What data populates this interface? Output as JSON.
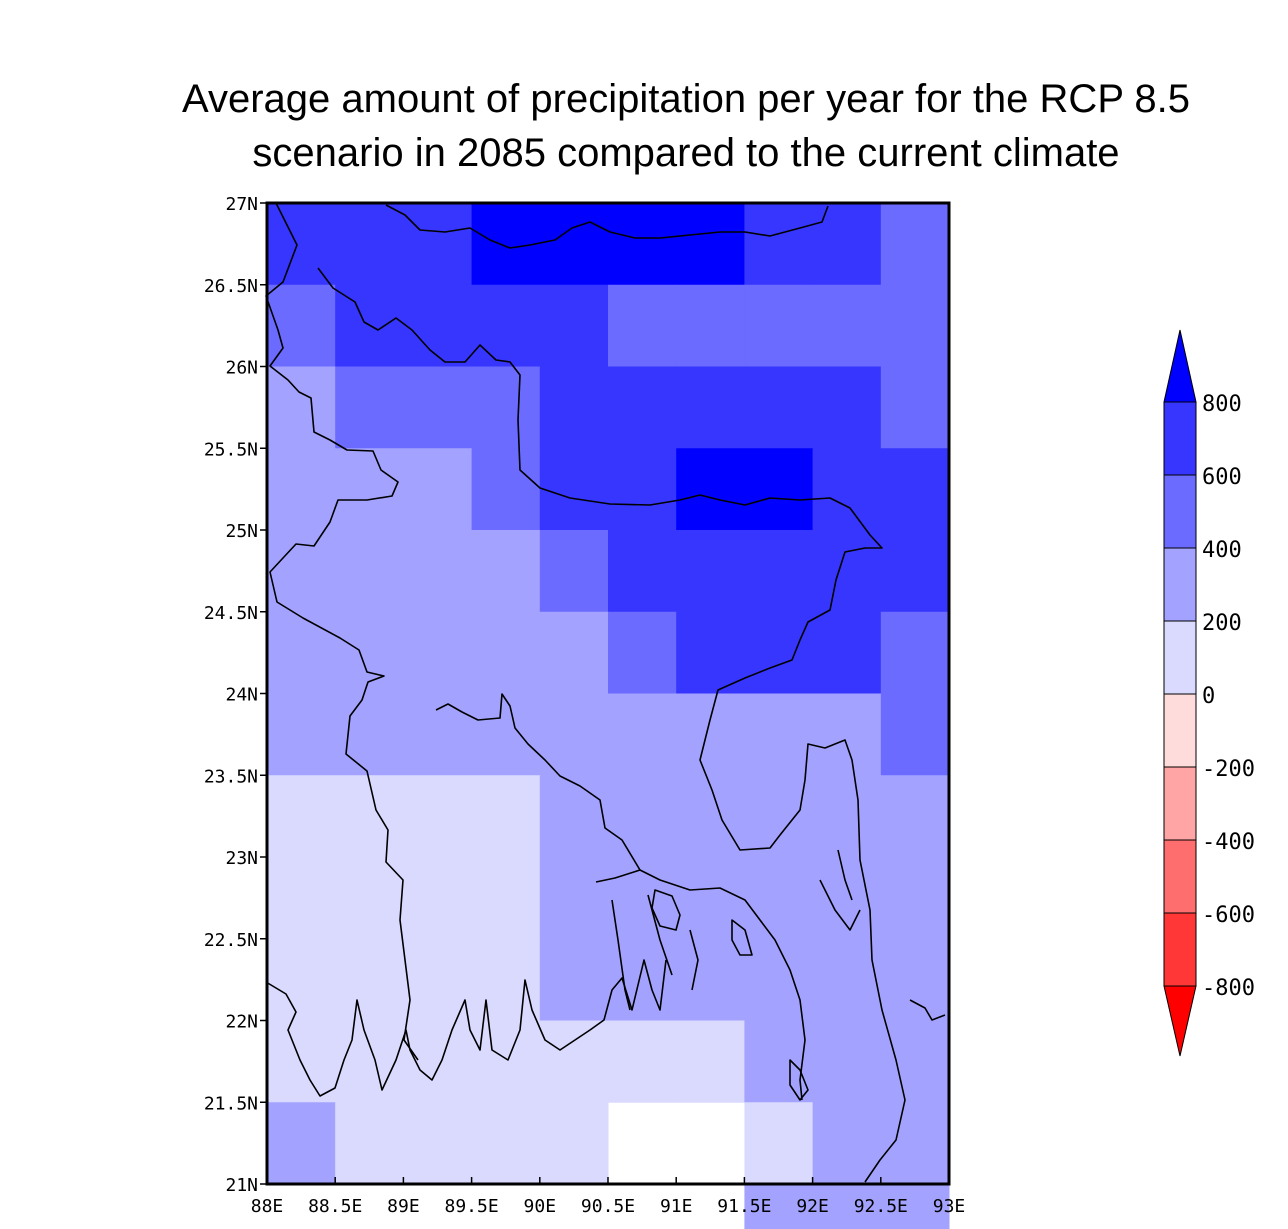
{
  "title": {
    "line1": "Average amount of precipitation per year for the RCP 8.5",
    "line2": "scenario in 2085 compared to the current climate"
  },
  "map": {
    "x_ticks": [
      "88E",
      "88.5E",
      "89E",
      "89.5E",
      "90E",
      "90.5E",
      "91E",
      "91.5E",
      "92E",
      "92.5E",
      "93E"
    ],
    "y_ticks": [
      "27N",
      "26.5N",
      "26N",
      "25.5N",
      "25N",
      "24.5N",
      "24N",
      "23.5N",
      "23N",
      "22.5N",
      "22N",
      "21.5N",
      "21N"
    ],
    "lon_range": [
      88,
      93
    ],
    "lat_range": [
      21,
      27
    ],
    "cell_size_deg": 0.5,
    "grid_rows_north_to_south": [
      [
        3,
        3,
        3,
        4,
        4,
        4,
        4,
        3,
        3,
        2
      ],
      [
        2,
        3,
        3,
        3,
        3,
        2,
        2,
        2,
        2,
        2
      ],
      [
        1,
        2,
        2,
        2,
        3,
        3,
        3,
        3,
        3,
        2
      ],
      [
        1,
        1,
        1,
        2,
        3,
        3,
        4,
        4,
        3,
        3
      ],
      [
        1,
        1,
        1,
        1,
        2,
        3,
        3,
        3,
        3,
        3
      ],
      [
        1,
        1,
        1,
        1,
        1,
        2,
        3,
        3,
        3,
        2
      ],
      [
        1,
        1,
        1,
        1,
        1,
        1,
        1,
        1,
        1,
        2
      ],
      [
        0,
        0,
        0,
        0,
        1,
        1,
        1,
        1,
        1,
        1
      ],
      [
        0,
        0,
        0,
        0,
        1,
        1,
        1,
        1,
        1,
        1
      ],
      [
        0,
        0,
        0,
        0,
        1,
        1,
        1,
        1,
        1,
        1
      ],
      [
        0,
        0,
        0,
        0,
        0,
        0,
        0,
        1,
        1,
        1
      ],
      [
        1,
        0,
        0,
        0,
        0,
        null,
        null,
        0,
        1,
        1
      ],
      [
        null,
        null,
        null,
        null,
        null,
        null,
        null,
        1,
        1,
        1
      ]
    ],
    "grid_note": "Class index per 0.5° cell: 0 = 0 to 200, 1 = 200 to 400, 2 = 400 to 600, 3 = 600 to 800, 4 = above 800; null = no data"
  },
  "colorbar": {
    "labels": [
      "800",
      "600",
      "400",
      "200",
      "0",
      "-200",
      "-400",
      "-600",
      "-800"
    ],
    "classes": [
      {
        "range": "above 800",
        "color": "#0000ff"
      },
      {
        "range": "600 to 800",
        "color": "#3636ff"
      },
      {
        "range": "400 to 600",
        "color": "#6b6bff"
      },
      {
        "range": "200 to 400",
        "color": "#a3a3ff"
      },
      {
        "range": "0 to 200",
        "color": "#dadaff"
      },
      {
        "range": "-200 to 0",
        "color": "#ffdcdc"
      },
      {
        "range": "-400 to -200",
        "color": "#ffa5a5"
      },
      {
        "range": "-600 to -400",
        "color": "#ff6e6e"
      },
      {
        "range": "-800 to -600",
        "color": "#ff3737"
      },
      {
        "range": "below -800",
        "color": "#ff0000"
      }
    ]
  }
}
